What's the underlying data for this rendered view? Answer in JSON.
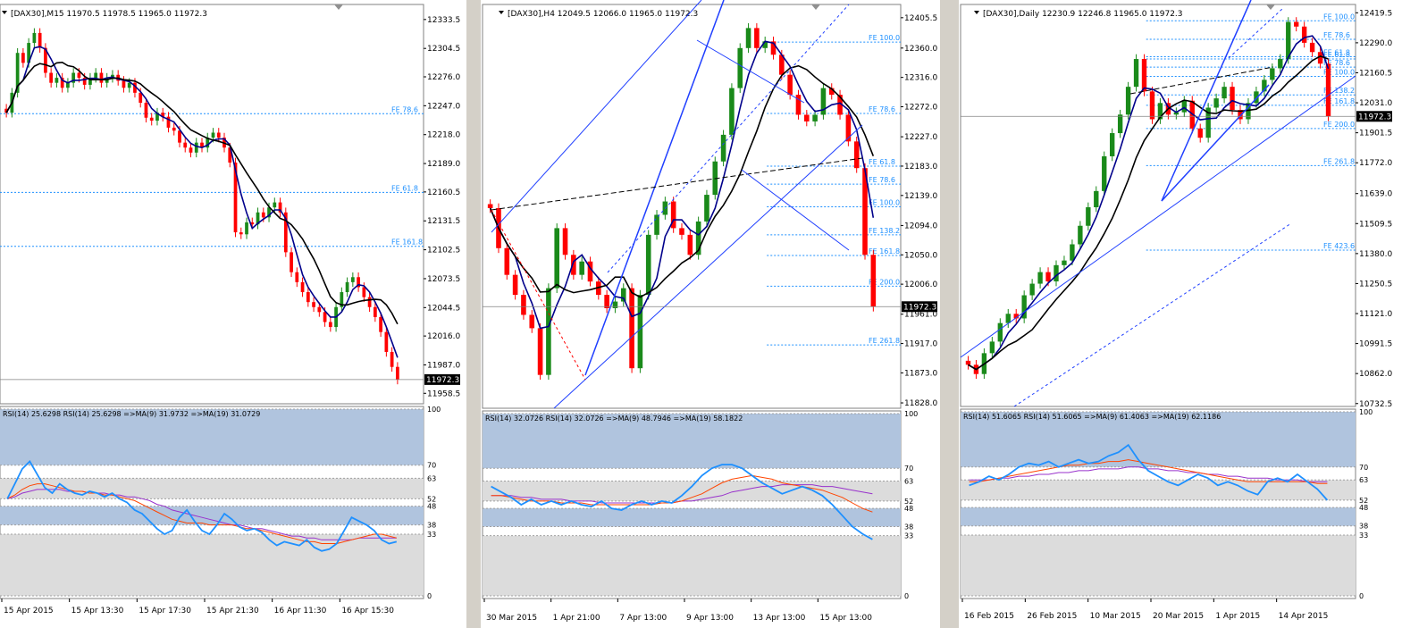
{
  "colors": {
    "bull": "#1a8a1a",
    "bear": "#ff0000",
    "ma_fast": "#00008b",
    "ma_slow": "#000000",
    "fib": "#1e90ff",
    "channel": "#1f3fff",
    "rsi": "#1e90ff",
    "rsi_ma9": "#ff4500",
    "rsi_ma19": "#9932cc",
    "rsi_band": "#b0c4de",
    "rsi_grey": "#dcdcdc",
    "frame": "#a0a0a0",
    "price_tag_bg": "#000000",
    "price_tag_fg": "#ffffff"
  },
  "chart_data": [
    {
      "id": "m15",
      "type": "candlestick",
      "title": "[DAX30],M15",
      "ohlc_header": "11970.5 11978.5 11965.0 11972.3",
      "price_axis_ticks": [
        "12333.5",
        "12304.5",
        "12276.0",
        "12247.0",
        "12218.0",
        "12189.0",
        "12160.5",
        "12131.5",
        "12102.5",
        "12073.5",
        "12044.5",
        "12016.0",
        "11987.0",
        "11958.5"
      ],
      "ylim": [
        11948,
        12345
      ],
      "current_price": "11972.3",
      "fib_levels": [
        {
          "label": "FE 78.6",
          "price": 12239
        },
        {
          "label": "FE 61.8",
          "price": 12160
        },
        {
          "label": "FE 161.8",
          "price": 12106
        }
      ],
      "x_labels": [
        "15 Apr 2015",
        "15 Apr 13:30",
        "15 Apr 17:30",
        "15 Apr 21:30",
        "16 Apr 11:30",
        "16 Apr 15:30"
      ],
      "closes": [
        12240,
        12260,
        12300,
        12290,
        12310,
        12320,
        12305,
        12280,
        12270,
        12275,
        12265,
        12270,
        12280,
        12275,
        12268,
        12275,
        12280,
        12270,
        12275,
        12278,
        12272,
        12265,
        12270,
        12260,
        12250,
        12235,
        12232,
        12240,
        12236,
        12225,
        12222,
        12210,
        12205,
        12200,
        12210,
        12205,
        12215,
        12220,
        12215,
        12205,
        12190,
        12120,
        12118,
        12130,
        12128,
        12140,
        12135,
        12145,
        12150,
        12140,
        12100,
        12080,
        12070,
        12060,
        12050,
        12045,
        12040,
        12030,
        12025,
        12045,
        12060,
        12070,
        12075,
        12065,
        12055,
        12045,
        12035,
        12020,
        12000,
        11985,
        11972.3
      ],
      "rsi": {
        "label": "RSI(14) 25.6298  RSI(14) 25.6298  =>MA(9) 31.9732  =>MA(19) 31.0729",
        "levels": [
          "100",
          "70",
          "63",
          "52",
          "48",
          "38",
          "33",
          "0"
        ],
        "values": [
          52,
          60,
          68,
          72,
          65,
          58,
          55,
          60,
          57,
          55,
          54,
          56,
          55,
          53,
          55,
          52,
          50,
          46,
          44,
          40,
          36,
          33,
          35,
          42,
          46,
          40,
          35,
          33,
          38,
          44,
          41,
          37,
          35,
          36,
          34,
          30,
          27,
          29,
          28,
          27,
          30,
          26,
          24,
          25,
          28,
          35,
          42,
          40,
          38,
          35,
          30,
          28,
          29
        ],
        "ma9": [
          52,
          54,
          57,
          59,
          60,
          60,
          59,
          58,
          57,
          56,
          56,
          55,
          55,
          54,
          54,
          53,
          52,
          51,
          49,
          47,
          45,
          43,
          41,
          40,
          39,
          39,
          39,
          38,
          38,
          38,
          38,
          37,
          36,
          36,
          35,
          34,
          33,
          32,
          31,
          30,
          29,
          29,
          28,
          28,
          28,
          29,
          30,
          31,
          32,
          33,
          33,
          32,
          31
        ],
        "ma19": [
          52,
          53,
          55,
          56,
          57,
          57,
          57,
          57,
          56,
          56,
          56,
          55,
          55,
          55,
          54,
          54,
          53,
          53,
          52,
          51,
          49,
          48,
          46,
          45,
          44,
          43,
          42,
          41,
          40,
          39,
          38,
          38,
          37,
          36,
          36,
          35,
          34,
          33,
          32,
          32,
          31,
          31,
          30,
          30,
          30,
          30,
          30,
          31,
          31,
          31,
          31,
          31,
          31
        ]
      }
    },
    {
      "id": "h4",
      "type": "candlestick",
      "title": "[DAX30],H4",
      "ohlc_header": "12049.5 12066.0 11965.0 11972.3",
      "price_axis_ticks": [
        "12405.5",
        "12360.0",
        "12316.0",
        "12272.0",
        "12227.0",
        "12183.0",
        "12139.0",
        "12094.0",
        "12050.0",
        "12006.0",
        "11961.0",
        "11917.0",
        "11873.0",
        "11828.0"
      ],
      "ylim": [
        11820,
        12420
      ],
      "current_price": "11972.3",
      "fib_levels": [
        {
          "label": "FE 100.0",
          "price": 12369
        },
        {
          "label": "FE 78.6",
          "price": 12262
        },
        {
          "label": "FE 61.8",
          "price": 12183
        },
        {
          "label": "FE 78.6",
          "price": 12156
        },
        {
          "label": "FE 100.0",
          "price": 12122
        },
        {
          "label": "FE 138.2",
          "price": 12080
        },
        {
          "label": "FE 161.8",
          "price": 12049
        },
        {
          "label": "FE 200.0",
          "price": 12003
        },
        {
          "label": "FE 261.8",
          "price": 11915
        }
      ],
      "x_labels": [
        "30 Mar 2015",
        "1 Apr 21:00",
        "7 Apr 13:00",
        "9 Apr 13:00",
        "13 Apr 13:00",
        "15 Apr 13:00"
      ],
      "closes": [
        12120,
        12060,
        12020,
        11990,
        11960,
        11940,
        11870,
        12000,
        12090,
        12050,
        12020,
        12040,
        12010,
        11990,
        11970,
        11980,
        12000,
        11880,
        11990,
        12080,
        12110,
        12130,
        12090,
        12080,
        12050,
        12100,
        12140,
        12190,
        12230,
        12300,
        12360,
        12390,
        12360,
        12370,
        12350,
        12320,
        12290,
        12260,
        12250,
        12260,
        12300,
        12290,
        12260,
        12220,
        12180,
        12050,
        11972.3
      ],
      "rsi": {
        "label": "RSI(14) 32.0726  RSI(14) 32.0726  =>MA(9) 48.7946  =>MA(19) 58.1822",
        "levels": [
          "100",
          "70",
          "63",
          "52",
          "48",
          "38",
          "33",
          "0"
        ],
        "values": [
          60,
          57,
          54,
          50,
          53,
          50,
          52,
          50,
          52,
          50,
          49,
          52,
          48,
          47,
          50,
          52,
          50,
          52,
          51,
          55,
          60,
          66,
          70,
          72,
          72,
          70,
          66,
          62,
          59,
          56,
          58,
          60,
          58,
          55,
          50,
          44,
          38,
          34,
          31
        ],
        "ma9": [
          55,
          55,
          54,
          53,
          52,
          52,
          52,
          51,
          51,
          51,
          50,
          50,
          50,
          50,
          50,
          50,
          50,
          51,
          51,
          52,
          54,
          56,
          59,
          62,
          64,
          65,
          66,
          65,
          64,
          62,
          61,
          60,
          59,
          58,
          56,
          54,
          51,
          48,
          46
        ],
        "ma19": [
          55,
          55,
          55,
          54,
          54,
          53,
          53,
          53,
          52,
          52,
          52,
          51,
          51,
          51,
          51,
          51,
          51,
          51,
          51,
          52,
          52,
          53,
          54,
          55,
          57,
          58,
          59,
          60,
          60,
          61,
          61,
          61,
          61,
          60,
          60,
          59,
          58,
          57,
          56
        ]
      }
    },
    {
      "id": "daily",
      "type": "candlestick",
      "title": "[DAX30],Daily",
      "ohlc_header": "12230.9 12246.8 11965.0 11972.3",
      "price_axis_ticks": [
        "12419.5",
        "12290.0",
        "12160.5",
        "12031.0",
        "11901.5",
        "11772.0",
        "11639.0",
        "11509.5",
        "11380.0",
        "11250.5",
        "11121.0",
        "10991.5",
        "10862.0",
        "10732.5"
      ],
      "ylim": [
        10720,
        12440
      ],
      "current_price": "11972.3",
      "fib_levels": [
        {
          "label": "FE 100.0",
          "price": 12385
        },
        {
          "label": "FE 78.6",
          "price": 12305
        },
        {
          "label": "FE 61.8",
          "price": 12230
        },
        {
          "label": "FE 61.8",
          "price": 12220
        },
        {
          "label": "FE 78.6",
          "price": 12185
        },
        {
          "label": "FE 100.0",
          "price": 12145
        },
        {
          "label": "FE 138.2",
          "price": 12065
        },
        {
          "label": "FE 161.8",
          "price": 12020
        },
        {
          "label": "FE 200.0",
          "price": 11920
        },
        {
          "label": "FE 261.8",
          "price": 11760
        },
        {
          "label": "FE 423.6",
          "price": 11395
        }
      ],
      "x_labels": [
        "16 Feb 2015",
        "26 Feb 2015",
        "10 Mar 2015",
        "20 Mar 2015",
        "1 Apr 2015",
        "14 Apr 2015"
      ],
      "closes": [
        10900,
        10860,
        10950,
        11000,
        11080,
        11120,
        11100,
        11200,
        11250,
        11300,
        11260,
        11330,
        11350,
        11420,
        11500,
        11580,
        11650,
        11800,
        11900,
        11980,
        12100,
        12220,
        12080,
        11960,
        12030,
        11980,
        11990,
        12040,
        11920,
        11880,
        12010,
        12050,
        12100,
        12000,
        11960,
        12030,
        12080,
        12130,
        12180,
        12220,
        12380,
        12360,
        12290,
        12250,
        12200,
        11972.3
      ],
      "rsi": {
        "label": "RSI(14) 51.6065  RSI(14) 51.6065  =>MA(9) 61.4063  =>MA(19) 62.1186",
        "levels": [
          "100",
          "70",
          "63",
          "52",
          "48",
          "38",
          "33",
          "0"
        ],
        "values": [
          60,
          62,
          65,
          63,
          66,
          70,
          72,
          71,
          73,
          70,
          72,
          74,
          72,
          73,
          76,
          78,
          82,
          74,
          68,
          65,
          62,
          60,
          63,
          66,
          64,
          60,
          62,
          60,
          57,
          55,
          62,
          64,
          62,
          66,
          62,
          58,
          52
        ],
        "ma9": [
          62,
          62,
          63,
          64,
          65,
          66,
          67,
          68,
          69,
          70,
          71,
          71,
          72,
          72,
          73,
          73,
          74,
          73,
          72,
          71,
          70,
          69,
          68,
          67,
          66,
          65,
          64,
          63,
          62,
          62,
          62,
          62,
          62,
          62,
          62,
          61,
          61
        ],
        "ma19": [
          63,
          63,
          63,
          64,
          64,
          65,
          65,
          66,
          66,
          67,
          67,
          68,
          68,
          69,
          69,
          69,
          70,
          70,
          69,
          69,
          68,
          68,
          67,
          67,
          66,
          66,
          65,
          65,
          64,
          64,
          64,
          63,
          63,
          63,
          62,
          62,
          62
        ]
      }
    }
  ]
}
